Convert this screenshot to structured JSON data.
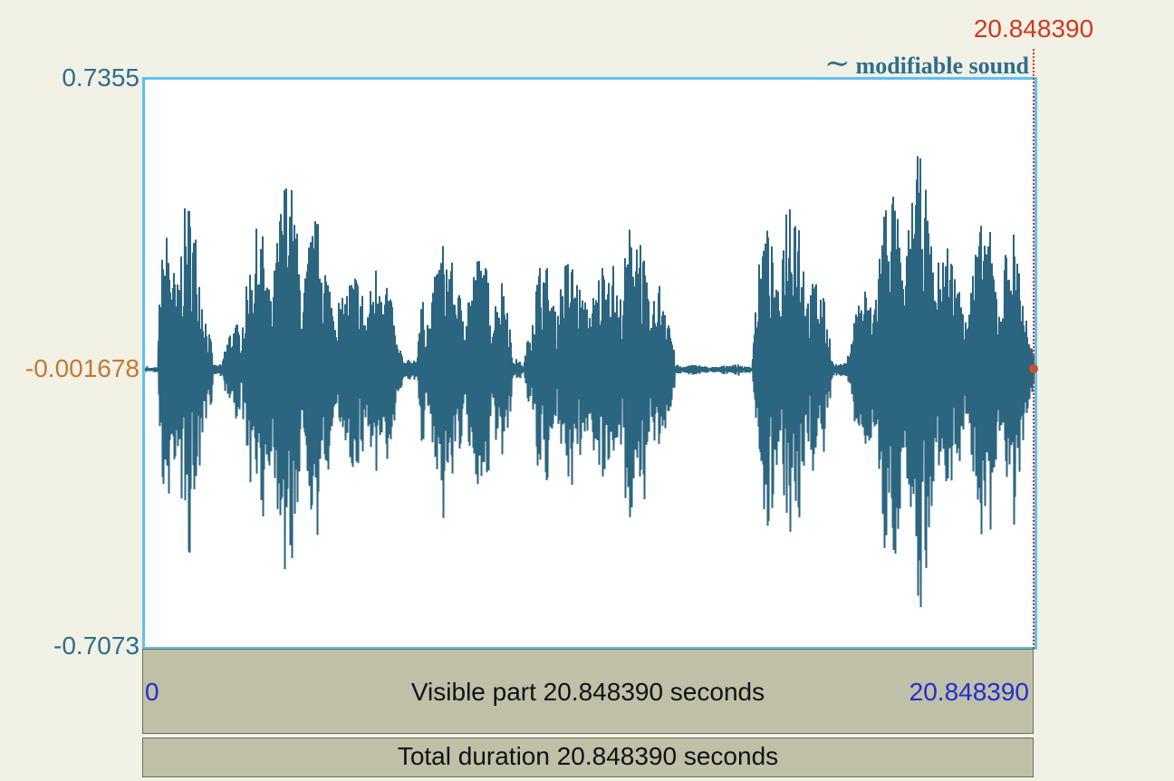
{
  "y_axis": {
    "max_label": "0.7355",
    "cursor_label": "-0.001678",
    "min_label": "-0.7073"
  },
  "cursor": {
    "time_label": "20.848390"
  },
  "sound": {
    "label": "modifiable sound"
  },
  "visible_part": {
    "start_label": "0",
    "end_label": "20.848390",
    "text": "Visible part 20.848390 seconds"
  },
  "total": {
    "text": "Total duration 20.848390 seconds"
  },
  "colors": {
    "waveform": "#2c6580",
    "panel_border": "#5ec1f1",
    "cursor": "#d0391e",
    "cursor_value": "#c07a32",
    "axis_text": "#2e6e8c",
    "time_blue": "#1e2fd0",
    "bar_bg": "#c0bfa7",
    "page_bg": "#f2f1e6"
  },
  "icons": {
    "sound_indicator": "tilde-icon"
  }
}
